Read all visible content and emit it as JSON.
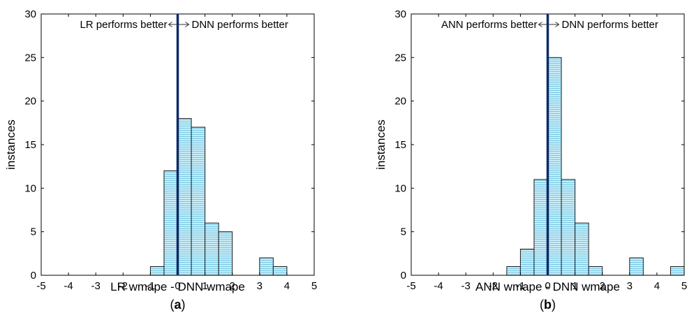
{
  "chart_data": [
    {
      "type": "bar",
      "panel_label": "a",
      "xlabel": "LR wmape - DNN wmape",
      "ylabel": "instances",
      "xlim": [
        -5,
        5
      ],
      "ylim": [
        0,
        30
      ],
      "xticks": [
        -5,
        -4,
        -3,
        -2,
        -1,
        0,
        1,
        2,
        3,
        4,
        5
      ],
      "yticks": [
        0,
        5,
        10,
        15,
        20,
        25,
        30
      ],
      "bin_width": 0.5,
      "bins": [
        {
          "x0": -1.0,
          "x1": -0.5,
          "count": 1
        },
        {
          "x0": -0.5,
          "x1": 0.0,
          "count": 12
        },
        {
          "x0": 0.0,
          "x1": 0.5,
          "count": 18
        },
        {
          "x0": 0.5,
          "x1": 1.0,
          "count": 17
        },
        {
          "x0": 1.0,
          "x1": 1.5,
          "count": 6
        },
        {
          "x0": 1.5,
          "x1": 2.0,
          "count": 5
        },
        {
          "x0": 3.0,
          "x1": 3.5,
          "count": 2
        },
        {
          "x0": 3.5,
          "x1": 4.0,
          "count": 1
        }
      ],
      "reference_line_x": 0,
      "annotation_left": "LR performs better",
      "annotation_right": "DNN performs better",
      "bar_color": "#b7e3f2",
      "line_color": "#0b2a66"
    },
    {
      "type": "bar",
      "panel_label": "b",
      "xlabel": "ANN wmape - DNN wmape",
      "ylabel": "instances",
      "xlim": [
        -5,
        5
      ],
      "ylim": [
        0,
        30
      ],
      "xticks": [
        -5,
        -4,
        -3,
        -2,
        -1,
        0,
        1,
        2,
        3,
        4,
        5
      ],
      "yticks": [
        0,
        5,
        10,
        15,
        20,
        25,
        30
      ],
      "bin_width": 0.5,
      "bins": [
        {
          "x0": -1.5,
          "x1": -1.0,
          "count": 1
        },
        {
          "x0": -1.0,
          "x1": -0.5,
          "count": 3
        },
        {
          "x0": -0.5,
          "x1": 0.0,
          "count": 11
        },
        {
          "x0": 0.0,
          "x1": 0.5,
          "count": 25
        },
        {
          "x0": 0.5,
          "x1": 1.0,
          "count": 11
        },
        {
          "x0": 1.0,
          "x1": 1.5,
          "count": 6
        },
        {
          "x0": 1.5,
          "x1": 2.0,
          "count": 1
        },
        {
          "x0": 3.0,
          "x1": 3.5,
          "count": 2
        },
        {
          "x0": 4.5,
          "x1": 5.0,
          "count": 1
        }
      ],
      "reference_line_x": 0,
      "annotation_left": "ANN performs better",
      "annotation_right": "DNN performs better",
      "bar_color": "#b7e3f2",
      "line_color": "#0b2a66"
    }
  ]
}
